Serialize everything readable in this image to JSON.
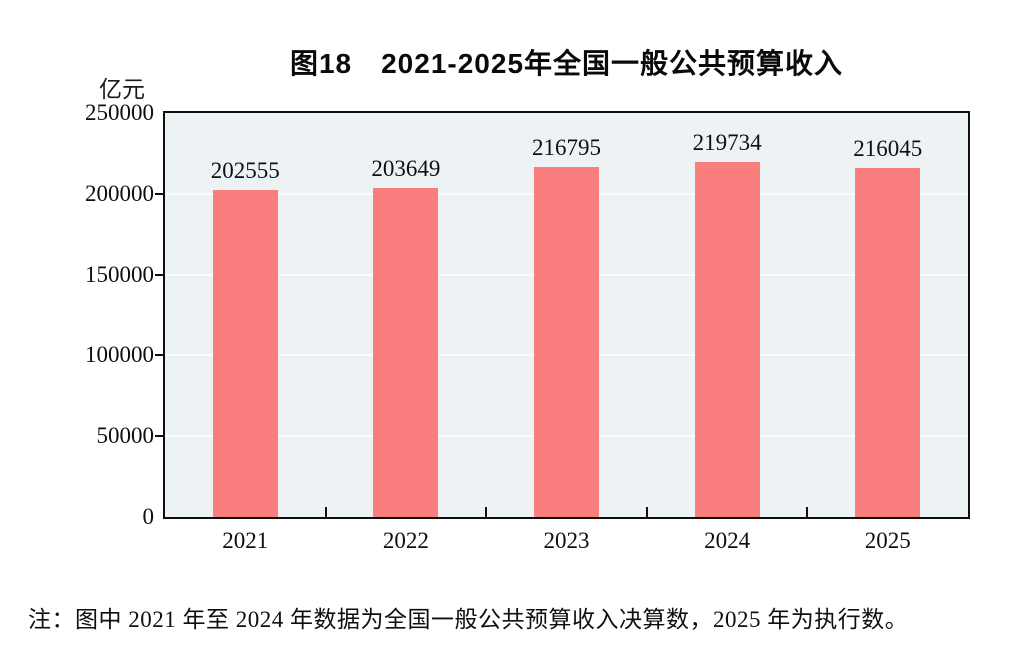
{
  "note": "注：图中 2021 年至 2024 年数据为全国一般公共预算收入决算数，2025 年为执行数。",
  "colors": {
    "bar": "#fb7e7e",
    "plot_bg": "#edf3f5",
    "grid": "#fafdfd",
    "axis": "#0f0f0f"
  },
  "chart_data": {
    "type": "bar",
    "title": "图18　2021-2025年全国一般公共预算收入",
    "ylabel": "亿元",
    "xlabel": "",
    "categories": [
      "2021",
      "2022",
      "2023",
      "2024",
      "2025"
    ],
    "values": [
      202555,
      203649,
      216795,
      219734,
      216045
    ],
    "ylim": [
      0,
      250000
    ],
    "yticks": [
      0,
      50000,
      100000,
      150000,
      200000,
      250000
    ],
    "grid": true,
    "legend": "none",
    "data_labels": true
  }
}
